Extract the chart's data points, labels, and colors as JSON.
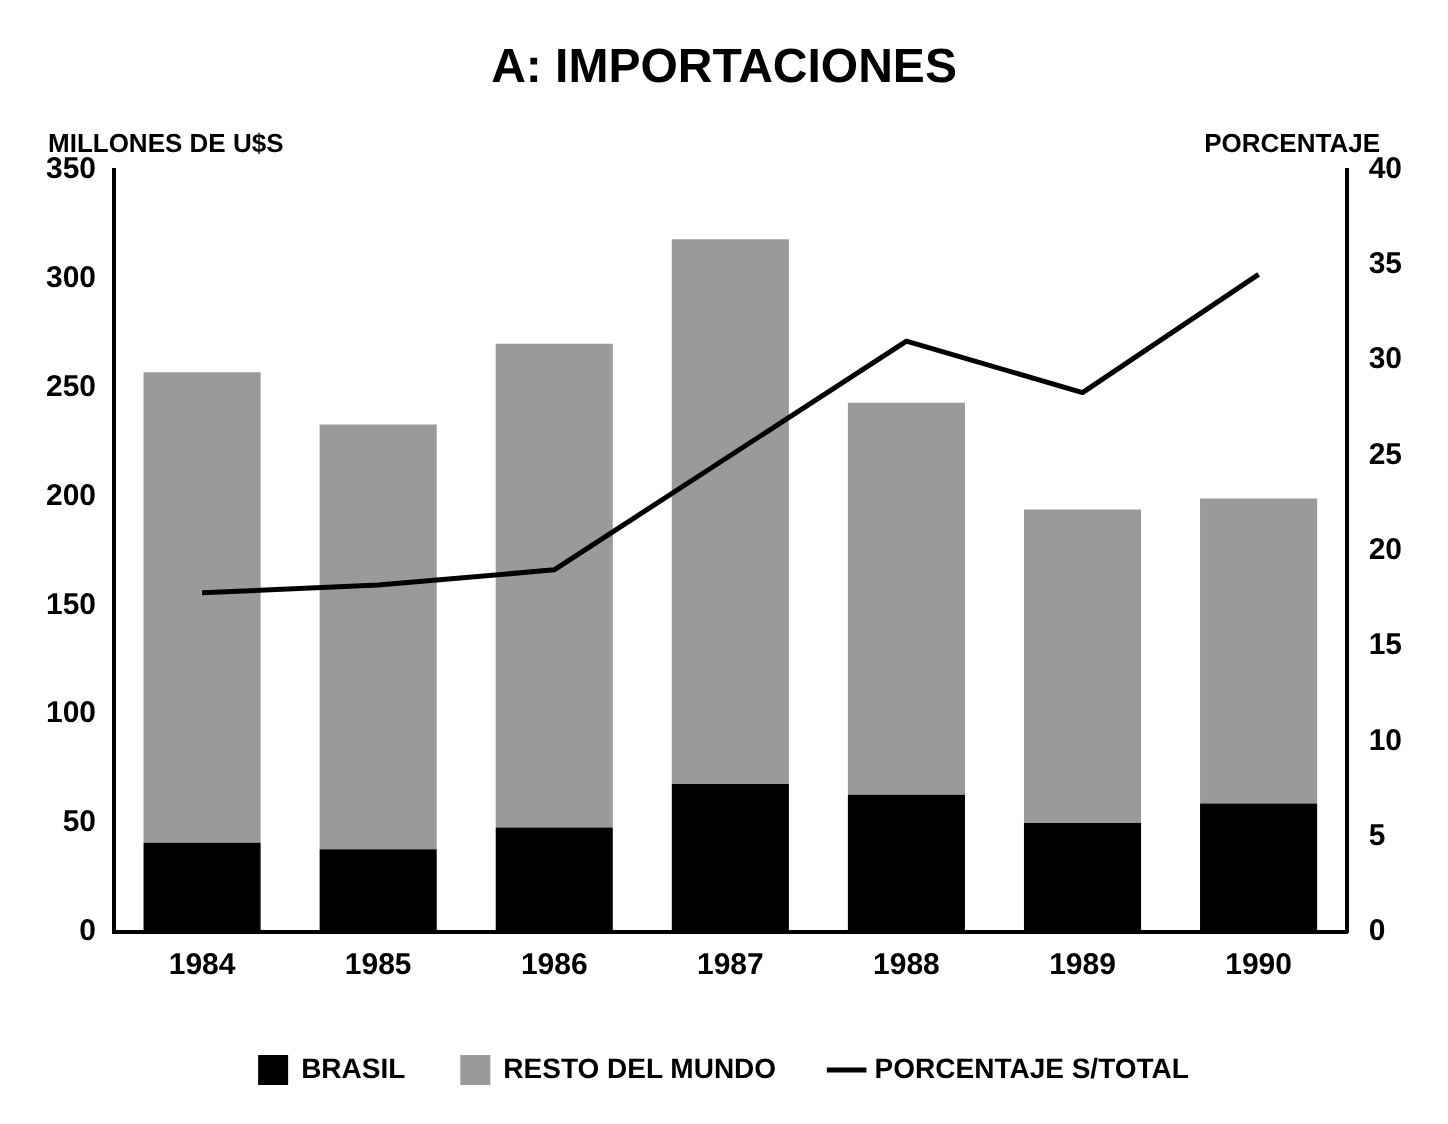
{
  "chart_data": {
    "type": "bar",
    "title": "A: IMPORTACIONES",
    "ylabel": "MILLONES DE U$S",
    "y2label": "PORCENTAJE",
    "categories": [
      "1984",
      "1985",
      "1986",
      "1987",
      "1988",
      "1989",
      "1990"
    ],
    "stacked": true,
    "series": [
      {
        "name": "BRASIL",
        "color": "#000000",
        "values": [
          41,
          38,
          48,
          68,
          63,
          50,
          59
        ]
      },
      {
        "name": "RESTO DEL MUNDO",
        "color": "#9a9a9a",
        "values": [
          216,
          195,
          222,
          250,
          180,
          144,
          140
        ]
      },
      {
        "name": "PORCENTAJE S/TOTAL",
        "type": "line",
        "axis": "y2",
        "color": "#000000",
        "values": [
          17.8,
          18.2,
          19,
          25,
          31,
          28.3,
          34.5
        ]
      }
    ],
    "ylim": [
      0,
      350
    ],
    "yticks": [
      0,
      50,
      100,
      150,
      200,
      250,
      300,
      350
    ],
    "y2lim": [
      0,
      40
    ],
    "y2ticks": [
      0,
      5,
      10,
      15,
      20,
      25,
      30,
      35,
      40
    ],
    "grid": false,
    "legend": "bottom",
    "marker": "none",
    "line_style": "solid"
  }
}
